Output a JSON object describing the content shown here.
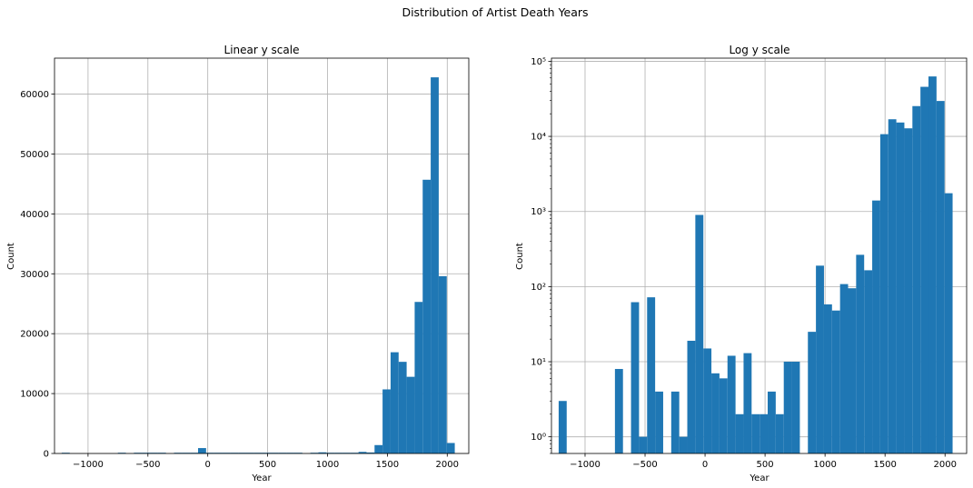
{
  "figure": {
    "suptitle": "Distribution of Artist Death Years"
  },
  "colors": {
    "bar": "#1f77b4",
    "grid": "#b0b0b0",
    "axis": "#000000"
  },
  "chart_data": [
    {
      "type": "bar",
      "title": "Linear y scale",
      "xlabel": "Year",
      "ylabel": "Count",
      "yscale": "linear",
      "grid": true,
      "xlim": [
        -1280,
        2180
      ],
      "ylim": [
        0,
        66000
      ],
      "xticks": [
        -1000,
        -500,
        0,
        500,
        1000,
        1500,
        2000
      ],
      "xtick_labels": [
        "−1000",
        "−500",
        "0",
        "500",
        "1000",
        "1500",
        "2000"
      ],
      "yticks": [
        0,
        10000,
        20000,
        30000,
        40000,
        50000,
        60000
      ],
      "ytick_labels": [
        "0",
        "10000",
        "20000",
        "30000",
        "40000",
        "50000",
        "60000"
      ],
      "bin_edges": [
        -1220,
        -1153,
        -1086,
        -1019,
        -952,
        -885,
        -818,
        -751,
        -684,
        -617,
        -550,
        -483,
        -416,
        -349,
        -282,
        -215,
        -148,
        -81,
        -14,
        53,
        120,
        187,
        254,
        321,
        388,
        455,
        522,
        589,
        656,
        723,
        790,
        857,
        924,
        991,
        1058,
        1125,
        1192,
        1259,
        1326,
        1393,
        1460,
        1527,
        1594,
        1661,
        1728,
        1795,
        1862,
        1929,
        1996,
        2063,
        2130
      ],
      "values": [
        3,
        0,
        0,
        0,
        0,
        0,
        0,
        8,
        0,
        62,
        1,
        72,
        4,
        0,
        4,
        1,
        19,
        900,
        15,
        7,
        6,
        12,
        2,
        13,
        2,
        2,
        4,
        2,
        10,
        10,
        0,
        25,
        190,
        58,
        48,
        108,
        95,
        265,
        165,
        1400,
        10700,
        16900,
        15300,
        12800,
        25300,
        45700,
        62800,
        29600,
        1750,
        0
      ]
    },
    {
      "type": "bar",
      "title": "Log y scale",
      "xlabel": "Year",
      "ylabel": "Count",
      "yscale": "log",
      "grid": true,
      "xlim": [
        -1280,
        2180
      ],
      "ylim": [
        0.6,
        110000
      ],
      "xticks": [
        -1000,
        -500,
        0,
        500,
        1000,
        1500,
        2000
      ],
      "xtick_labels": [
        "−1000",
        "−500",
        "0",
        "500",
        "1000",
        "1500",
        "2000"
      ],
      "yticks": [
        1,
        10,
        100,
        1000,
        10000,
        100000
      ],
      "ytick_labels": [
        "10⁰",
        "10¹",
        "10²",
        "10³",
        "10⁴",
        "10⁵"
      ],
      "bin_edges": [
        -1220,
        -1153,
        -1086,
        -1019,
        -952,
        -885,
        -818,
        -751,
        -684,
        -617,
        -550,
        -483,
        -416,
        -349,
        -282,
        -215,
        -148,
        -81,
        -14,
        53,
        120,
        187,
        254,
        321,
        388,
        455,
        522,
        589,
        656,
        723,
        790,
        857,
        924,
        991,
        1058,
        1125,
        1192,
        1259,
        1326,
        1393,
        1460,
        1527,
        1594,
        1661,
        1728,
        1795,
        1862,
        1929,
        1996,
        2063,
        2130
      ],
      "values": [
        3,
        0,
        0,
        0,
        0,
        0,
        0,
        8,
        0,
        62,
        1,
        72,
        4,
        0,
        4,
        1,
        19,
        900,
        15,
        7,
        6,
        12,
        2,
        13,
        2,
        2,
        4,
        2,
        10,
        10,
        0,
        25,
        190,
        58,
        48,
        108,
        95,
        265,
        165,
        1400,
        10700,
        16900,
        15300,
        12800,
        25300,
        45700,
        62800,
        29600,
        1750,
        0
      ]
    }
  ]
}
